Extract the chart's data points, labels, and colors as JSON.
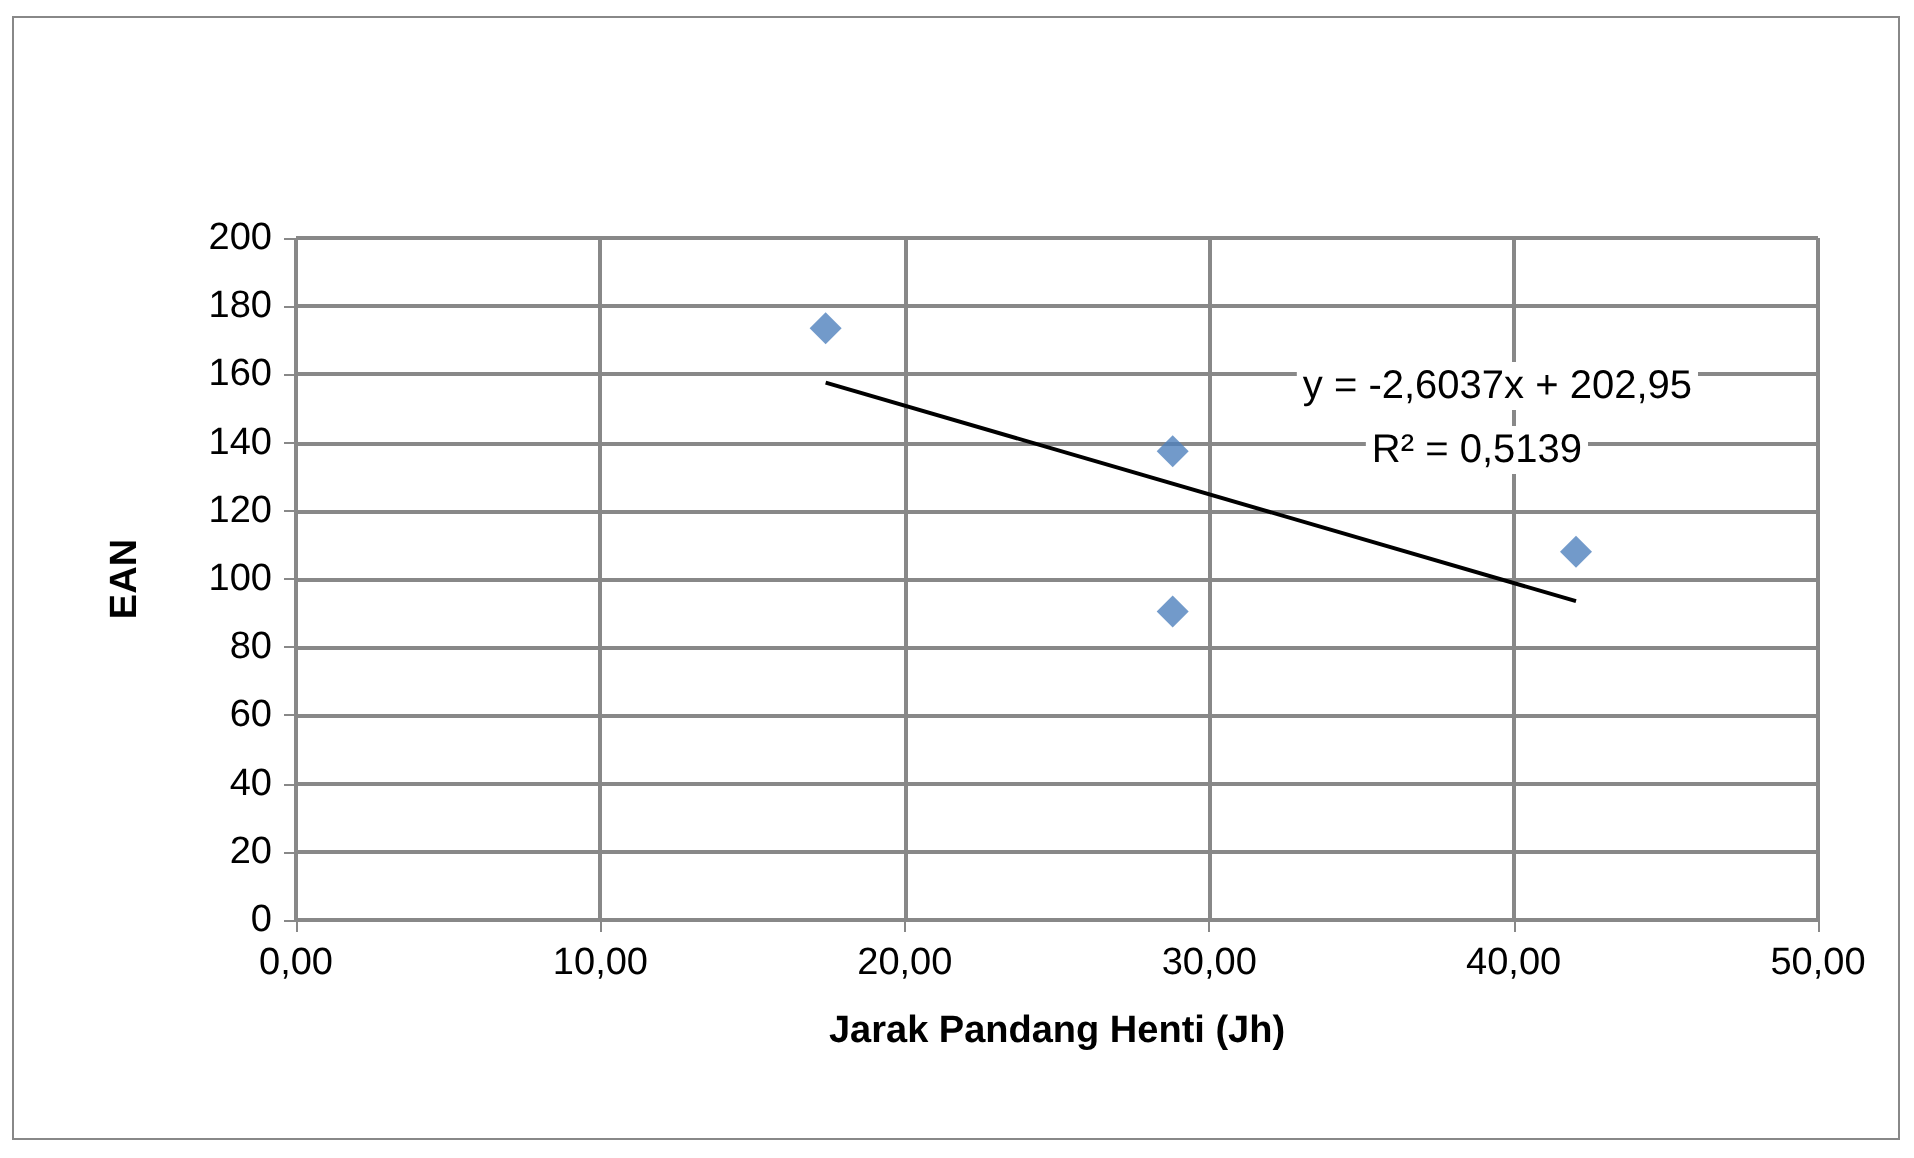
{
  "chart_data": {
    "type": "scatter",
    "xlabel": "Jarak Pandang Henti (Jh)",
    "ylabel": "EAN",
    "annotations": [
      "y = -2,6037x + 202,95",
      "R² = 0,5139"
    ],
    "series": [
      {
        "color": "#4f81bd",
        "marker": "diamond",
        "x": [
          17.4,
          28.8,
          28.8,
          42.05
        ],
        "values": [
          173.5,
          137.5,
          90.5,
          108
        ]
      },
      {
        "type": "line",
        "color": "#000000",
        "marker": "none",
        "x": [
          17.4,
          42.05
        ],
        "values": [
          157.6,
          93.5
        ]
      }
    ],
    "xlim": [
      0,
      50
    ],
    "xticks": [
      {
        "value": 0,
        "label": "0,00"
      },
      {
        "value": 10,
        "label": "10,00"
      },
      {
        "value": 20,
        "label": "20,00"
      },
      {
        "value": 30,
        "label": "30,00"
      },
      {
        "value": 40,
        "label": "40,00"
      },
      {
        "value": 50,
        "label": "50,00"
      }
    ],
    "ylim": [
      0,
      200
    ],
    "yticks": [
      0,
      20,
      40,
      60,
      80,
      100,
      120,
      140,
      160,
      180,
      200
    ],
    "grid": true
  }
}
